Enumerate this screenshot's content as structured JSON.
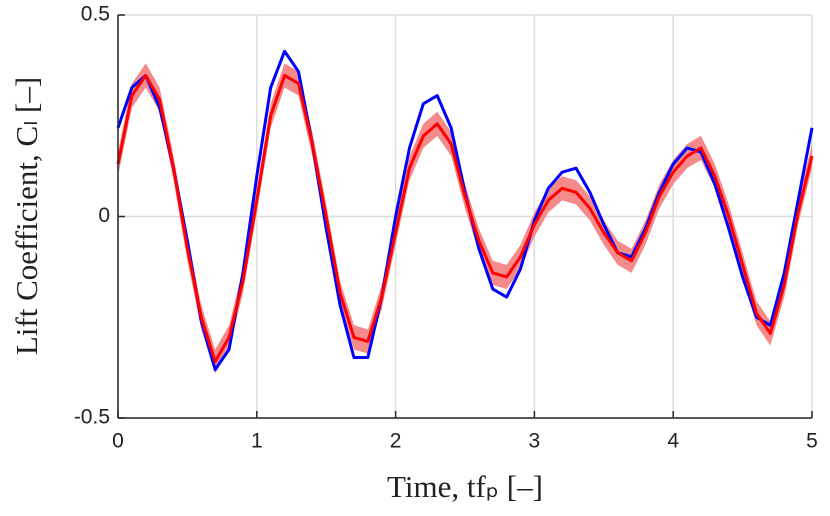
{
  "chart_data": {
    "type": "line",
    "x_label": "Time, tfₚ [–]",
    "y_label": "Lift Coefficient, Cₗ [–]",
    "x": [
      0,
      0.1,
      0.2,
      0.3,
      0.4,
      0.5,
      0.6,
      0.7,
      0.8,
      0.9,
      1,
      1.1,
      1.2,
      1.3,
      1.4,
      1.5,
      1.6,
      1.7,
      1.8,
      1.9,
      2,
      2.1,
      2.2,
      2.3,
      2.4,
      2.5,
      2.6,
      2.7,
      2.8,
      2.9,
      3,
      3.1,
      3.2,
      3.3,
      3.4,
      3.5,
      3.6,
      3.7,
      3.8,
      3.9,
      4,
      4.1,
      4.2,
      4.3,
      4.4,
      4.5,
      4.6,
      4.7,
      4.8,
      4.9,
      5
    ],
    "series": [
      {
        "color": "#0000ff",
        "values": [
          0.22,
          0.32,
          0.35,
          0.27,
          0.12,
          -0.06,
          -0.26,
          -0.38,
          -0.33,
          -0.14,
          0.1,
          0.32,
          0.41,
          0.36,
          0.18,
          -0.03,
          -0.22,
          -0.35,
          -0.35,
          -0.2,
          0.0,
          0.17,
          0.28,
          0.3,
          0.22,
          0.06,
          -0.08,
          -0.18,
          -0.2,
          -0.13,
          -0.01,
          0.07,
          0.11,
          0.12,
          0.06,
          -0.02,
          -0.09,
          -0.1,
          -0.03,
          0.06,
          0.13,
          0.17,
          0.16,
          0.08,
          -0.03,
          -0.15,
          -0.25,
          -0.27,
          -0.14,
          0.04,
          0.22
        ]
      },
      {
        "color": "#ff0000",
        "band_color": "#f48a8a",
        "values": [
          0.13,
          0.3,
          0.35,
          0.29,
          0.12,
          -0.08,
          -0.25,
          -0.36,
          -0.3,
          -0.16,
          0.04,
          0.25,
          0.35,
          0.33,
          0.18,
          0.0,
          -0.19,
          -0.3,
          -0.31,
          -0.2,
          -0.04,
          0.12,
          0.2,
          0.23,
          0.18,
          0.05,
          -0.06,
          -0.14,
          -0.15,
          -0.1,
          -0.02,
          0.04,
          0.07,
          0.06,
          0.02,
          -0.04,
          -0.09,
          -0.11,
          -0.04,
          0.05,
          0.11,
          0.15,
          0.17,
          0.1,
          0.0,
          -0.12,
          -0.24,
          -0.29,
          -0.17,
          0.01,
          0.15
        ],
        "upper": [
          0.16,
          0.33,
          0.38,
          0.32,
          0.15,
          -0.05,
          -0.22,
          -0.33,
          -0.27,
          -0.13,
          0.07,
          0.28,
          0.38,
          0.36,
          0.21,
          0.03,
          -0.16,
          -0.27,
          -0.28,
          -0.17,
          -0.01,
          0.15,
          0.23,
          0.26,
          0.21,
          0.08,
          -0.03,
          -0.11,
          -0.12,
          -0.07,
          0.01,
          0.07,
          0.1,
          0.09,
          0.05,
          -0.01,
          -0.06,
          -0.08,
          -0.01,
          0.08,
          0.14,
          0.18,
          0.2,
          0.13,
          0.03,
          -0.09,
          -0.21,
          -0.26,
          -0.14,
          0.04,
          0.18
        ],
        "lower": [
          0.1,
          0.27,
          0.32,
          0.26,
          0.09,
          -0.11,
          -0.28,
          -0.39,
          -0.33,
          -0.19,
          0.01,
          0.22,
          0.32,
          0.3,
          0.15,
          -0.03,
          -0.22,
          -0.33,
          -0.34,
          -0.23,
          -0.07,
          0.09,
          0.17,
          0.2,
          0.15,
          0.02,
          -0.09,
          -0.17,
          -0.18,
          -0.13,
          -0.05,
          0.01,
          0.04,
          0.03,
          -0.01,
          -0.07,
          -0.12,
          -0.14,
          -0.07,
          0.02,
          0.08,
          0.12,
          0.14,
          0.07,
          -0.03,
          -0.15,
          -0.27,
          -0.32,
          -0.2,
          -0.02,
          0.12
        ]
      }
    ],
    "xlim": [
      0,
      5
    ],
    "xticks": [
      0,
      1,
      2,
      3,
      4,
      5
    ],
    "ylim": [
      -0.5,
      0.5
    ],
    "yticks": [
      -0.5,
      0,
      0.5
    ],
    "grid": true
  }
}
